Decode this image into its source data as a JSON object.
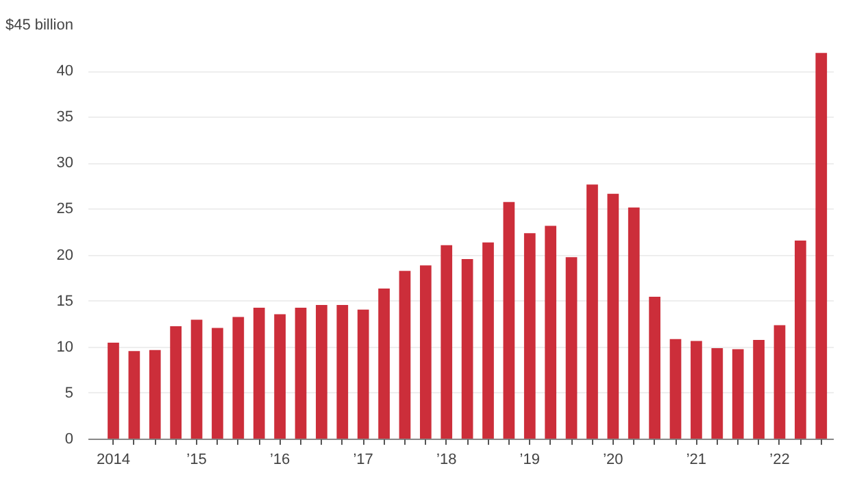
{
  "chart_data": {
    "type": "bar",
    "categories": [
      "2014",
      null,
      null,
      null,
      "’15",
      null,
      null,
      null,
      "’16",
      null,
      null,
      null,
      "’17",
      null,
      null,
      null,
      "’18",
      null,
      null,
      null,
      "’19",
      null,
      null,
      null,
      "’20",
      null,
      null,
      null,
      "’21",
      null,
      null,
      null,
      "’22",
      null,
      null
    ],
    "values": [
      10.5,
      9.6,
      9.7,
      12.3,
      13.0,
      12.1,
      13.3,
      14.3,
      13.6,
      14.3,
      14.6,
      14.6,
      14.1,
      16.4,
      18.3,
      18.9,
      21.1,
      19.6,
      21.4,
      25.8,
      22.4,
      23.2,
      19.8,
      27.7,
      26.7,
      25.2,
      15.5,
      10.9,
      10.7,
      9.9,
      9.8,
      10.8,
      12.4,
      21.6,
      42.0
    ],
    "color": "#cc2e3a",
    "ylim": [
      0,
      45
    ],
    "yticks": [
      0,
      5,
      10,
      15,
      20,
      25,
      30,
      35,
      40,
      {
        "value": 45,
        "label": "$45 billion"
      }
    ],
    "grid": "y"
  }
}
